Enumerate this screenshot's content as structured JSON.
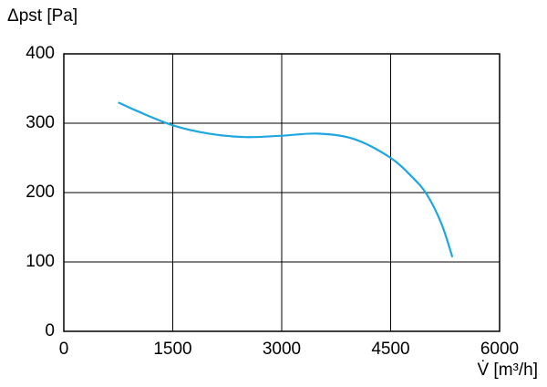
{
  "chart_data": {
    "type": "line",
    "y_label": "Δpst [Pa]",
    "x_label": "V̇ [m³/h]",
    "x": [
      750,
      1000,
      1500,
      2000,
      2500,
      3000,
      3500,
      4000,
      4500,
      4800,
      5000,
      5200,
      5350
    ],
    "series": [
      {
        "color": "#1ea7e1",
        "values": [
          330,
          318,
          297,
          285,
          280,
          282,
          285,
          277,
          250,
          222,
          197,
          155,
          107
        ]
      }
    ],
    "xlim": [
      0,
      6000
    ],
    "xticks": [
      0,
      1500,
      3000,
      4500,
      6000
    ],
    "ylim": [
      0,
      400
    ],
    "yticks": [
      0,
      100,
      200,
      300,
      400
    ],
    "grid": true
  }
}
